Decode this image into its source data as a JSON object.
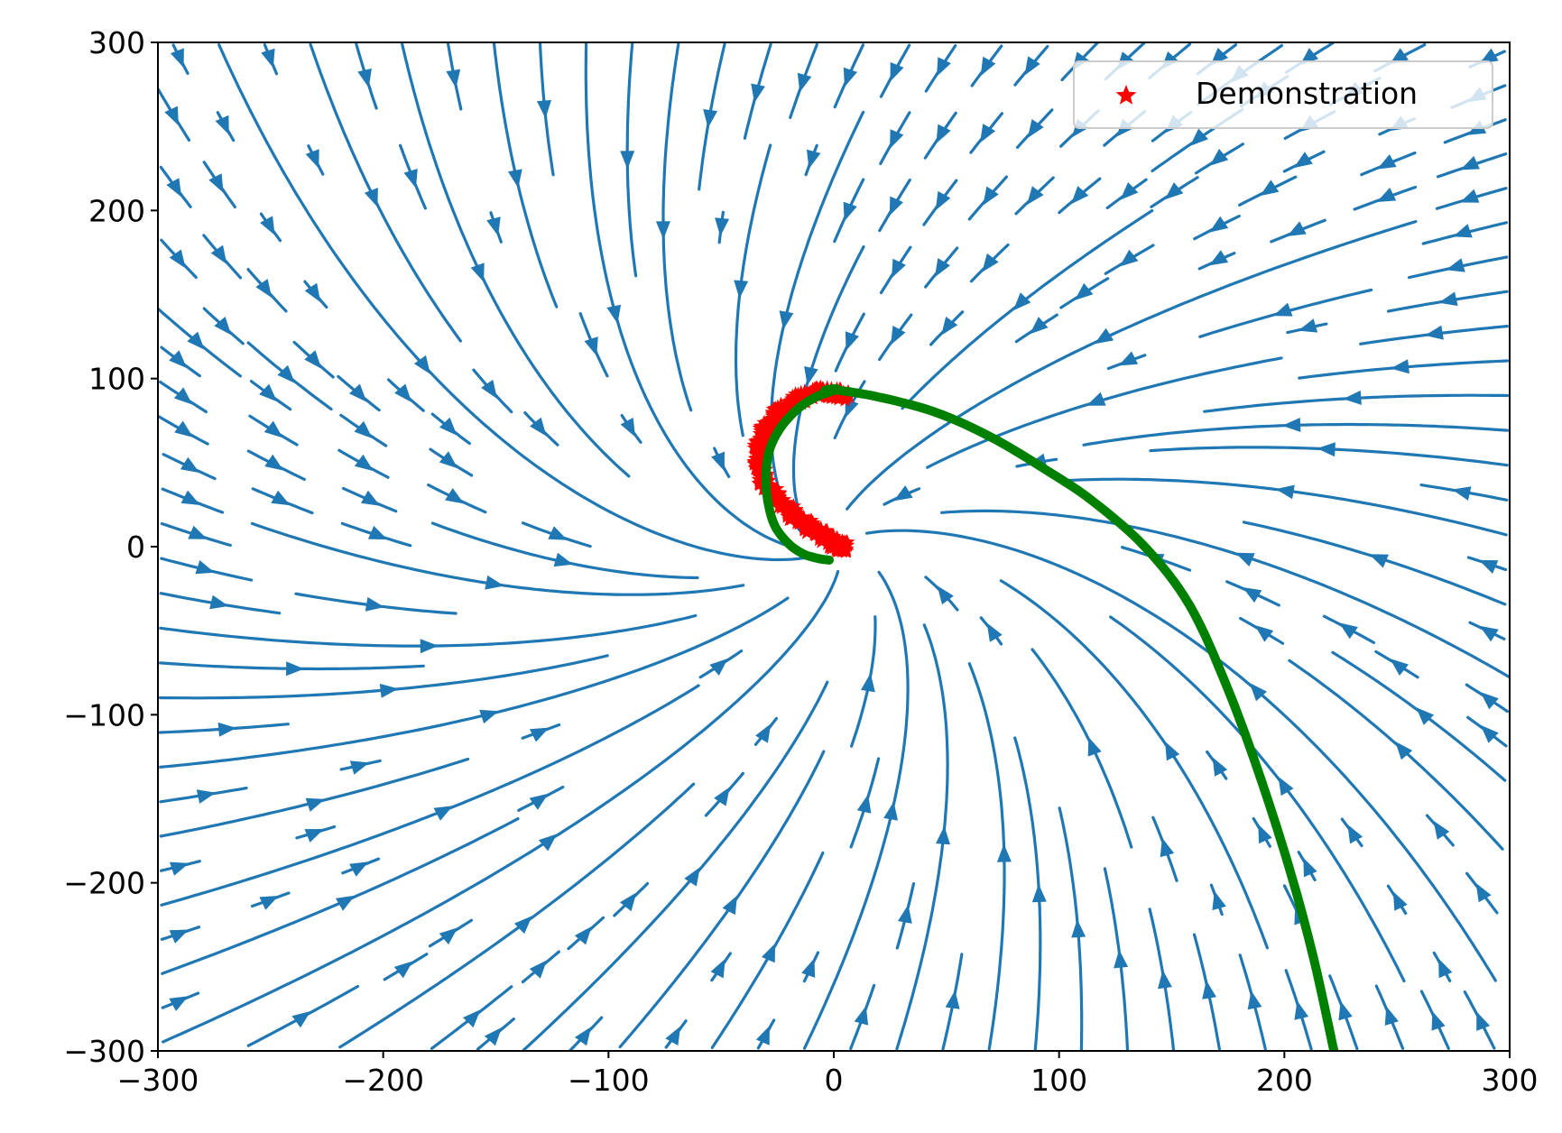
{
  "chart_data": {
    "type": "streamplot",
    "title": "",
    "xlabel": "",
    "ylabel": "",
    "xlim": [
      -300,
      300
    ],
    "ylim": [
      -300,
      300
    ],
    "xticks": [
      -300,
      -200,
      -100,
      0,
      100,
      200,
      300
    ],
    "yticks": [
      -300,
      -200,
      -100,
      0,
      100,
      200,
      300
    ],
    "x_tick_labels": [
      "−300",
      "−200",
      "−100",
      "0",
      "100",
      "200",
      "300"
    ],
    "y_tick_labels": [
      "−300",
      "−200",
      "−100",
      "0",
      "100",
      "200",
      "300"
    ],
    "grid": false,
    "legend": {
      "position": "top-right",
      "entries": [
        {
          "label": "Demonstration",
          "marker": "star",
          "color": "#ff0000"
        }
      ]
    },
    "colors": {
      "streamlines": "#1f77b4",
      "demonstration": "#ff0000",
      "reproduction": "#008000"
    },
    "vector_field": {
      "form": "spiral sink toward origin",
      "ax": -0.9,
      "bx": -0.35,
      "ay": 0.35,
      "by": -1.1,
      "center": [
        0,
        0
      ]
    },
    "demonstration": {
      "x": [
        5,
        -5,
        -15,
        -24,
        -30,
        -33,
        -33,
        -30,
        -24,
        -17,
        -10,
        -4,
        0,
        3,
        4
      ],
      "y": [
        90,
        92,
        88,
        80,
        70,
        60,
        48,
        37,
        27,
        18,
        11,
        6,
        2,
        0,
        0
      ]
    },
    "reproduction": {
      "x": [
        -2,
        -7,
        -14,
        -21,
        -27,
        -30,
        -29,
        -24,
        -16,
        -8,
        -2,
        1,
        -4,
        2,
        20,
        45,
        70,
        95,
        115,
        138,
        158,
        175,
        190,
        203,
        213,
        222
      ],
      "y": [
        -8,
        -7,
        -4,
        3,
        15,
        35,
        55,
        70,
        82,
        89,
        92,
        94,
        93,
        93,
        89,
        80,
        65,
        45,
        27,
        0,
        -35,
        -85,
        -140,
        -195,
        -245,
        -300
      ]
    }
  }
}
